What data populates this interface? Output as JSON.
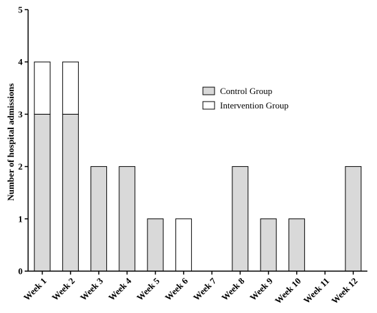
{
  "chart_data": {
    "type": "bar",
    "stacked": true,
    "categories": [
      "Week 1",
      "Week 2",
      "Week 3",
      "Week 4",
      "Week 5",
      "Week 6",
      "Week 7",
      "Week 8",
      "Week 9",
      "Week 10",
      "Week 11",
      "Week 12"
    ],
    "series": [
      {
        "name": "Control Group",
        "color": "#d9d9d9",
        "values": [
          3,
          3,
          2,
          2,
          1,
          0,
          0,
          2,
          1,
          1,
          0,
          2
        ]
      },
      {
        "name": "Intervention Group",
        "color": "#ffffff",
        "values": [
          1,
          1,
          0,
          0,
          0,
          1,
          0,
          0,
          0,
          0,
          0,
          0
        ]
      }
    ],
    "title": "",
    "xlabel": "",
    "ylabel": "Number of hospital admissions",
    "ylim": [
      0,
      5
    ],
    "yticks": [
      "0",
      "1",
      "2",
      "3",
      "4",
      "5"
    ],
    "grid": false,
    "legend_position": "right"
  }
}
